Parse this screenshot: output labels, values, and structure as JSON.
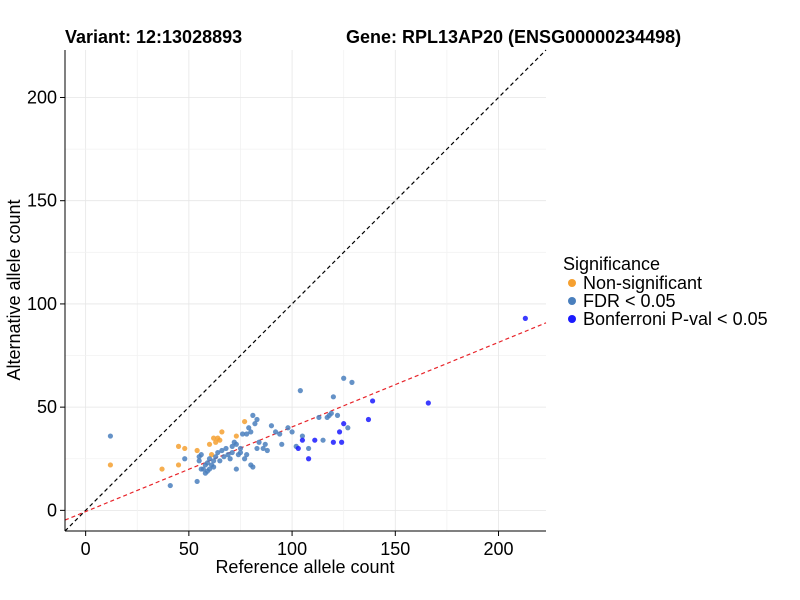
{
  "chart_data": {
    "type": "scatter",
    "title_left": "Variant: 12:13028893",
    "title_right": "Gene: RPL13AP20 (ENSG00000234498)",
    "xlabel": "Reference allele count",
    "ylabel": "Alternative allele count",
    "xlim": [
      -10,
      223
    ],
    "ylim": [
      -10,
      223
    ],
    "x_ticks": [
      0,
      50,
      100,
      150,
      200
    ],
    "y_ticks": [
      0,
      50,
      100,
      150,
      200
    ],
    "x_tick_labels": [
      "0",
      "50",
      "100",
      "150",
      "200"
    ],
    "y_tick_labels": [
      "0",
      "50",
      "100",
      "150",
      "200"
    ],
    "grid": true,
    "legend_position": "right",
    "legend": {
      "title": "Significance",
      "entries": [
        {
          "label": "Non-significant",
          "color": "#f5a030"
        },
        {
          "label": "FDR < 0.05",
          "color": "#4a7fbd"
        },
        {
          "label": "Bonferroni P-val < 0.05",
          "color": "#1a1aff"
        }
      ]
    },
    "reference_lines": [
      {
        "name": "identity",
        "slope": 1,
        "intercept": 0,
        "color": "#000000",
        "dash": true
      },
      {
        "name": "fit",
        "slope": 0.41,
        "intercept": -0.6,
        "color": "#e8242a",
        "dash": true
      }
    ],
    "series": [
      {
        "name": "Non-significant",
        "color": "#f5a030",
        "points": [
          [
            12,
            22
          ],
          [
            37,
            20
          ],
          [
            45,
            31
          ],
          [
            45,
            22
          ],
          [
            48,
            30
          ],
          [
            54,
            29
          ],
          [
            60,
            32
          ],
          [
            61,
            27
          ],
          [
            62,
            35
          ],
          [
            63,
            33
          ],
          [
            64,
            35
          ],
          [
            65,
            34
          ],
          [
            66,
            38
          ],
          [
            73,
            36
          ],
          [
            77,
            43
          ]
        ]
      },
      {
        "name": "FDR < 0.05",
        "color": "#4a7fbd",
        "points": [
          [
            12,
            36
          ],
          [
            41,
            12
          ],
          [
            48,
            25
          ],
          [
            54,
            14
          ],
          [
            55,
            26
          ],
          [
            55,
            24
          ],
          [
            56,
            27
          ],
          [
            56,
            20
          ],
          [
            57,
            20
          ],
          [
            58,
            22
          ],
          [
            58,
            18
          ],
          [
            59,
            23
          ],
          [
            59,
            19
          ],
          [
            60,
            20
          ],
          [
            60,
            25
          ],
          [
            61,
            22
          ],
          [
            62,
            24
          ],
          [
            62,
            21
          ],
          [
            63,
            26
          ],
          [
            64,
            28
          ],
          [
            65,
            24
          ],
          [
            66,
            29
          ],
          [
            67,
            26
          ],
          [
            68,
            30
          ],
          [
            69,
            27
          ],
          [
            70,
            25
          ],
          [
            71,
            31
          ],
          [
            71,
            28
          ],
          [
            72,
            33
          ],
          [
            73,
            32
          ],
          [
            73,
            20
          ],
          [
            74,
            27
          ],
          [
            75,
            28
          ],
          [
            75,
            30
          ],
          [
            76,
            37
          ],
          [
            77,
            25
          ],
          [
            78,
            37
          ],
          [
            78,
            27
          ],
          [
            79,
            40
          ],
          [
            80,
            38
          ],
          [
            80,
            22
          ],
          [
            81,
            46
          ],
          [
            81,
            21
          ],
          [
            82,
            42
          ],
          [
            83,
            44
          ],
          [
            83,
            30
          ],
          [
            84,
            33
          ],
          [
            86,
            30
          ],
          [
            87,
            32
          ],
          [
            88,
            29
          ],
          [
            90,
            41
          ],
          [
            92,
            38
          ],
          [
            94,
            37
          ],
          [
            95,
            32
          ],
          [
            98,
            40
          ],
          [
            100,
            38
          ],
          [
            102,
            31
          ],
          [
            104,
            58
          ],
          [
            105,
            36
          ],
          [
            108,
            30
          ],
          [
            113,
            45
          ],
          [
            115,
            34
          ],
          [
            117,
            45
          ],
          [
            118,
            46
          ],
          [
            119,
            47
          ],
          [
            120,
            55
          ],
          [
            122,
            46
          ],
          [
            125,
            64
          ],
          [
            127,
            40
          ],
          [
            129,
            62
          ]
        ]
      },
      {
        "name": "Bonferroni P-val < 0.05",
        "color": "#1a1aff",
        "points": [
          [
            103,
            30
          ],
          [
            105,
            34
          ],
          [
            108,
            25
          ],
          [
            111,
            34
          ],
          [
            120,
            33
          ],
          [
            123,
            38
          ],
          [
            124,
            33
          ],
          [
            125,
            42
          ],
          [
            137,
            44
          ],
          [
            139,
            53
          ],
          [
            166,
            52
          ],
          [
            213,
            93
          ]
        ]
      }
    ]
  }
}
